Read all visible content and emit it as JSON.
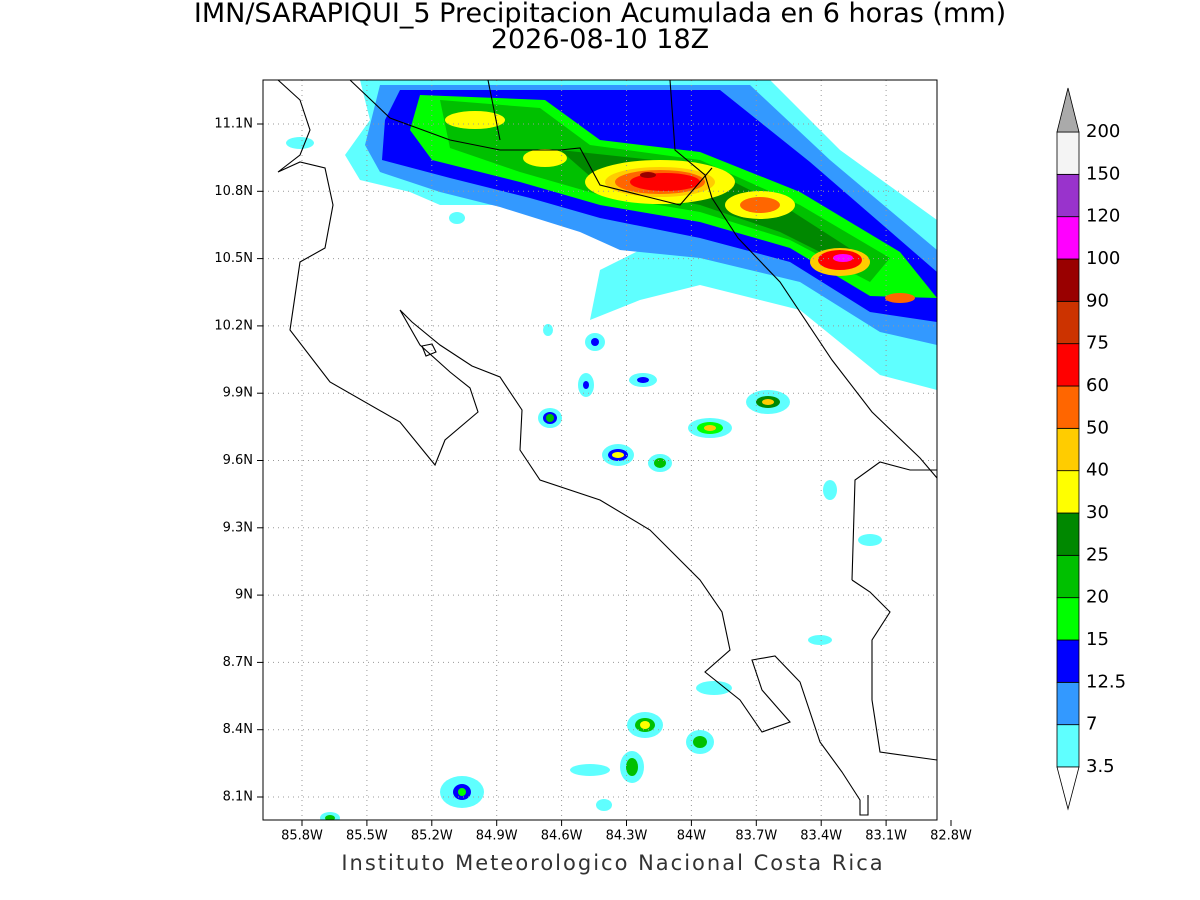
{
  "header": {
    "title": "IMN/SARAPIQUI_5 Precipitacion Acumulada en 6 horas (mm)",
    "subtitle": "2026-08-10 18Z"
  },
  "map": {
    "lon_labels": [
      "85.8W",
      "85.5W",
      "85.2W",
      "84.9W",
      "84.6W",
      "84.3W",
      "84W",
      "83.7W",
      "83.4W",
      "83.1W",
      "82.8W"
    ],
    "lat_labels": [
      "11.1N",
      "10.8N",
      "10.5N",
      "10.2N",
      "9.9N",
      "9.6N",
      "9.3N",
      "9N",
      "8.7N",
      "8.4N",
      "8.1N"
    ],
    "grid": true
  },
  "colorbar": {
    "levels": [
      "3.5",
      "7",
      "12.5",
      "15",
      "20",
      "25",
      "30",
      "40",
      "50",
      "60",
      "75",
      "90",
      "100",
      "120",
      "150",
      "200"
    ],
    "band_colors": [
      "#5fffff",
      "#3399ff",
      "#0000ff",
      "#00ff00",
      "#00c000",
      "#008800",
      "#ffff00",
      "#ffcc00",
      "#ff6600",
      "#ff0000",
      "#cc3300",
      "#990000",
      "#ff00ff",
      "#9933cc",
      "#f4f4f4"
    ],
    "under_color": "#ffffff",
    "over_color": "#aaaaaa"
  },
  "footer": "Instituto Meteorologico Nacional Costa Rica"
}
